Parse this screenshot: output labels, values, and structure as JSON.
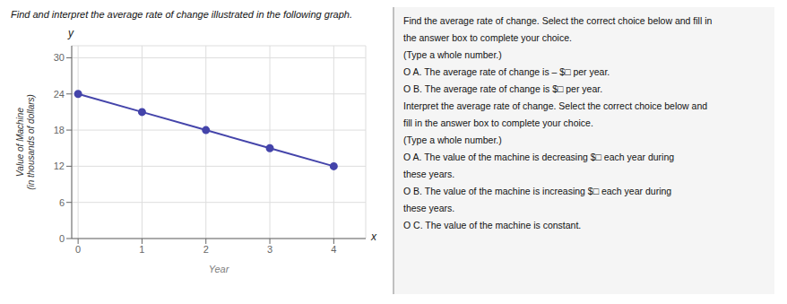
{
  "chart_data": {
    "type": "line",
    "title": "Find and interpret the average rate of change illustrated in the following graph.",
    "x_label": "Year",
    "y_label": "Value of Machine\n(in thousands of dollars)",
    "x": [
      0,
      1,
      2,
      3,
      4
    ],
    "values": [
      24,
      21,
      18,
      15,
      12
    ],
    "color": "#4444aa",
    "marker": "o",
    "xlim": [
      -0.1,
      4.5
    ],
    "ylim": [
      0,
      32
    ],
    "xticks": [
      0,
      1,
      2,
      3,
      4
    ],
    "yticks": [
      0,
      6,
      12,
      18,
      24,
      30
    ],
    "grid": true,
    "annotations": [
      "y",
      "x",
      "Find the average rate of change. Select the correct choice below and fill in",
      "the answer box to complete your choice.",
      "(Type a whole number.)",
      "O A.  The average rate of change is – $□ per year.",
      "O B.  The average rate of change is $□ per year.",
      "Interpret the average rate of change. Select the correct choice below and",
      "fill in the answer box to complete your choice.",
      "(Type a whole number.)",
      "O A.  The value of the machine is decreasing $□ each year during",
      "these years.",
      "O B.  The value of the machine is increasing $□ each year during",
      "these years.",
      "O C.  The value of the machine is constant."
    ]
  }
}
